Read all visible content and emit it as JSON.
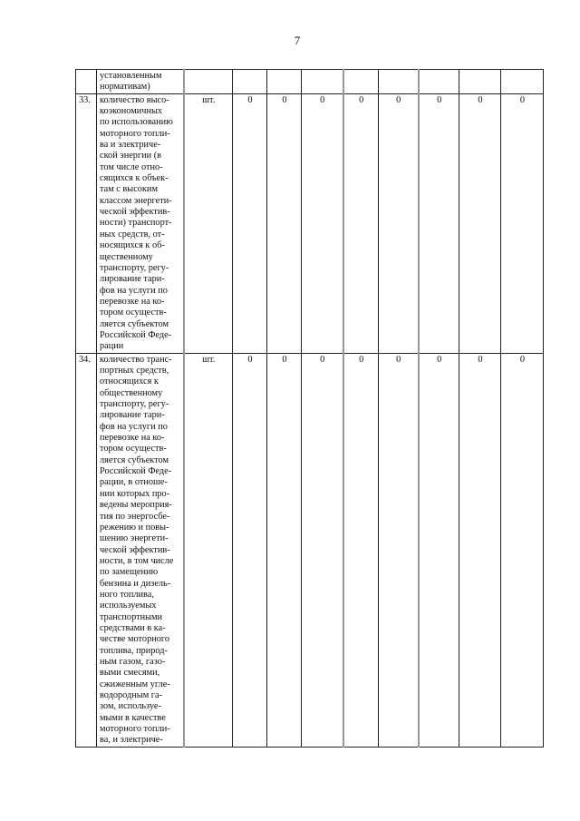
{
  "page_number": "7",
  "rows": [
    {
      "num": "",
      "lines": [
        "установленным",
        "нормативам)"
      ],
      "unit": "",
      "values": [
        "",
        "",
        "",
        "",
        "",
        "",
        "",
        ""
      ]
    },
    {
      "num": "33.",
      "lines": [
        "количество высо-",
        "коэкономичных",
        "по использованию",
        "моторного топли-",
        "ва и электриче-",
        "ской энергии (в",
        "том числе отно-",
        "сящихся к объек-",
        "там с высоким",
        "классом энергети-",
        "ческой эффектив-",
        "ности) транспорт-",
        "ных средств, от-",
        "носящихся к об-",
        "щественному",
        "транспорту, регу-",
        "лирование тари-",
        "фов на услуги по",
        "перевозке на ко-",
        "тором осуществ-",
        "ляется субъектом",
        "Российской Феде-",
        "рации"
      ],
      "unit": "шт.",
      "values": [
        "0",
        "0",
        "0",
        "0",
        "0",
        "0",
        "0",
        "0"
      ]
    },
    {
      "num": "34.",
      "lines": [
        "количество транс-",
        "портных средств,",
        "относящихся к",
        "общественному",
        "транспорту, регу-",
        "лирование тари-",
        "фов на услуги по",
        "перевозке на ко-",
        "тором осуществ-",
        "ляется субъектом",
        "Российской Феде-",
        "рации, в отноше-",
        "нии которых про-",
        "ведены мероприя-",
        "тия по энергосбе-",
        "режению и повы-",
        "шению энергети-",
        "ческой эффектив-",
        "ности, в том числе",
        "по замещению",
        "бензина и дизель-",
        "ного топлива,",
        "используемых",
        "транспортными",
        "средствами в ка-",
        "честве моторного",
        "топлива, природ-",
        "ным газом, газо-",
        "выми смесями,",
        "сжиженным угле-",
        "водородным га-",
        "зом, используе-",
        "мыми в качестве",
        "моторного топли-",
        "ва, и электриче-"
      ],
      "unit": "шт.",
      "values": [
        "0",
        "0",
        "0",
        "0",
        "0",
        "0",
        "0",
        "0"
      ]
    }
  ]
}
